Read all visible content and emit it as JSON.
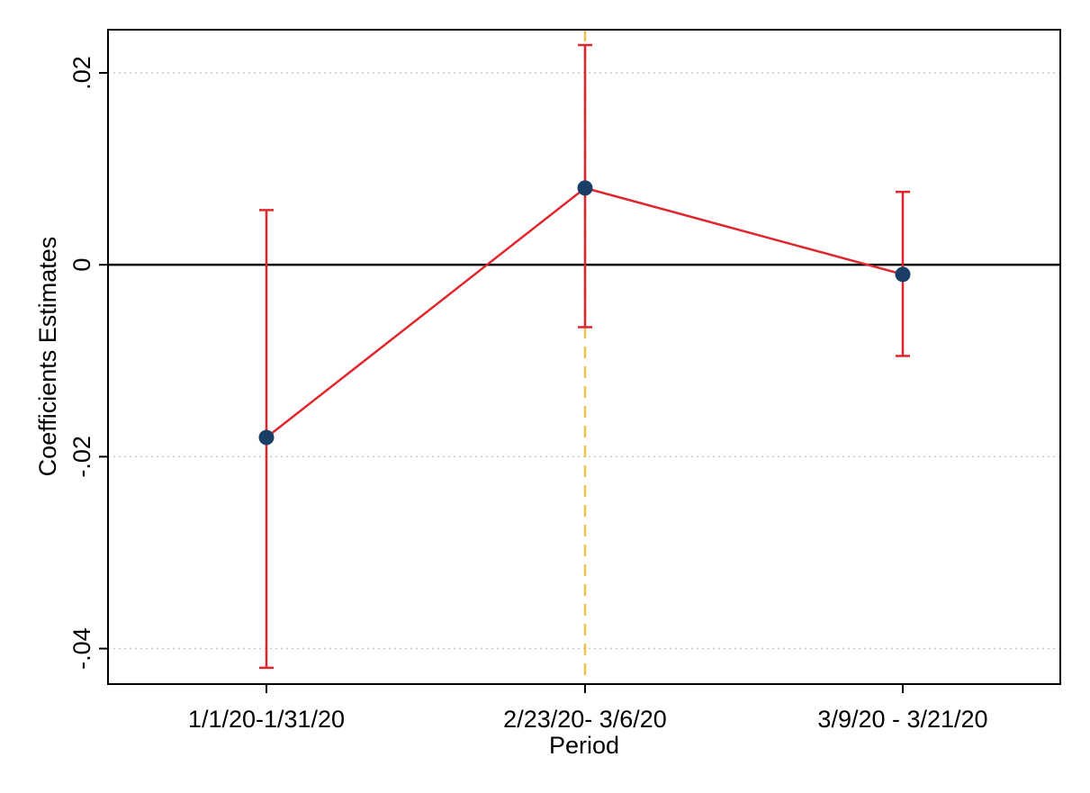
{
  "chart_data": {
    "type": "scatter",
    "title": "",
    "xlabel": "Period",
    "ylabel": "Coefficients Estimates",
    "categories": [
      "1/1/20-1/31/20",
      "2/23/20- 3/6/20",
      "3/9/20 - 3/21/20"
    ],
    "series": [
      {
        "values": [
          -0.018,
          0.008,
          -0.001
        ],
        "ci_lower": [
          -0.042,
          -0.0065,
          -0.0095
        ],
        "ci_upper": [
          0.0057,
          0.0229,
          0.0076
        ]
      }
    ],
    "ylim": [
      -0.0437,
      0.0245
    ],
    "yticks": [
      -0.04,
      -0.02,
      0,
      0.02
    ],
    "ytick_labels": [
      "-.04",
      "-.02",
      "0",
      ".02"
    ],
    "reference_line_y": 0,
    "event_line_category": "2/23/20- 3/6/20",
    "grid": "horizontal dotted",
    "legend": "none",
    "colors": {
      "line": "#e0262c",
      "errorbar": "#e0262c",
      "marker": "#1a3f66",
      "event_line": "#f2c14e",
      "zero_line": "#000000",
      "grid": "#c8c8c8"
    }
  }
}
